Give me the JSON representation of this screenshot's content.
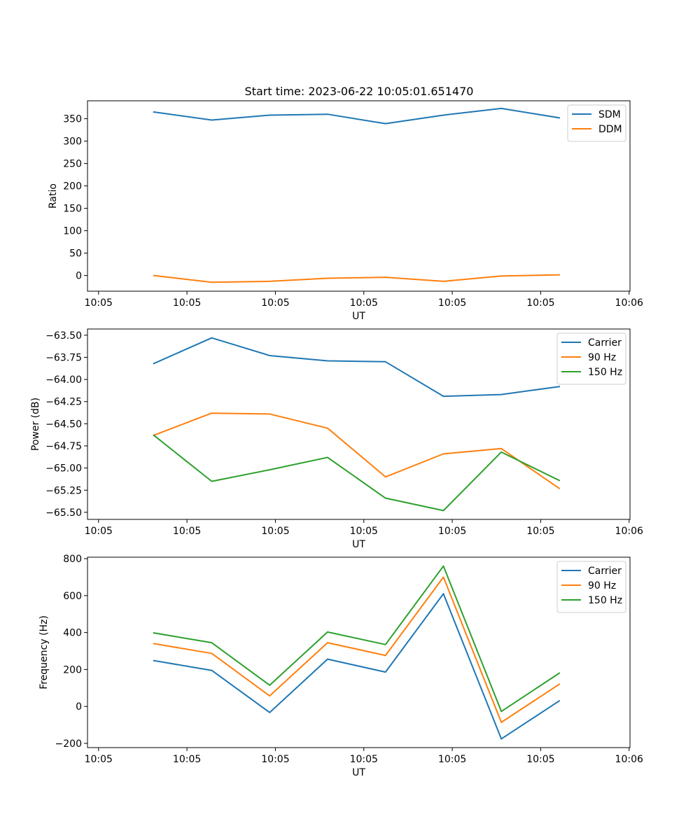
{
  "figure_title": "Start time: 2023-06-22 10:05:01.651470",
  "chart_data": [
    {
      "type": "line",
      "title": "Start time: 2023-06-22 10:05:01.651470",
      "xlabel": "UT",
      "ylabel": "Ratio",
      "x_ticklabels": [
        "10:05",
        "10:05",
        "10:05",
        "10:05",
        "10:05",
        "10:05",
        "10:06"
      ],
      "x_ticks_seconds": [
        5.6,
        6.6,
        7.6,
        8.6,
        9.6,
        10.6,
        11.6
      ],
      "x_seconds": [
        6.225,
        6.88,
        7.535,
        8.19,
        8.845,
        9.5,
        10.155,
        10.81
      ],
      "xlim": [
        5.475,
        11.61
      ],
      "y_ticks": [
        0,
        50,
        100,
        150,
        200,
        250,
        300,
        350
      ],
      "ylim": [
        -35,
        390
      ],
      "legend": "top-right",
      "series": [
        {
          "name": "SDM",
          "color": "#1f77b4",
          "values": [
            365,
            347,
            358,
            360,
            339,
            358,
            373,
            352
          ]
        },
        {
          "name": "DDM",
          "color": "#ff7f0e",
          "values": [
            0,
            -15,
            -13,
            -6,
            -4,
            -13,
            -1,
            1.5
          ]
        }
      ]
    },
    {
      "type": "line",
      "xlabel": "UT",
      "ylabel": "Power (dB)",
      "x_ticklabels": [
        "10:05",
        "10:05",
        "10:05",
        "10:05",
        "10:05",
        "10:05",
        "10:06"
      ],
      "x_ticks_seconds": [
        5.6,
        6.6,
        7.6,
        8.6,
        9.6,
        10.6,
        11.6
      ],
      "x_seconds": [
        6.225,
        6.88,
        7.535,
        8.19,
        8.845,
        9.5,
        10.155,
        10.81
      ],
      "xlim": [
        5.475,
        11.61
      ],
      "y_ticks": [
        -63.5,
        -63.75,
        -64.0,
        -64.25,
        -64.5,
        -64.75,
        -65.0,
        -65.25,
        -65.5
      ],
      "y_ticklabels": [
        "−63.50",
        "−63.75",
        "−64.00",
        "−64.25",
        "−64.50",
        "−64.75",
        "−65.00",
        "−65.25",
        "−65.50"
      ],
      "ylim": [
        -65.58,
        -63.43
      ],
      "legend": "top-right",
      "series": [
        {
          "name": "Carrier",
          "color": "#1f77b4",
          "values": [
            -63.82,
            -63.53,
            -63.73,
            -63.79,
            -63.8,
            -64.19,
            -64.17,
            -64.08
          ]
        },
        {
          "name": "90 Hz",
          "color": "#ff7f0e",
          "values": [
            -64.63,
            -64.38,
            -64.39,
            -64.55,
            -65.1,
            -64.84,
            -64.78,
            -65.23
          ]
        },
        {
          "name": "150 Hz",
          "color": "#2ca02c",
          "values": [
            -64.63,
            -65.15,
            -65.02,
            -64.88,
            -65.34,
            -65.48,
            -64.82,
            -65.14
          ]
        }
      ]
    },
    {
      "type": "line",
      "xlabel": "UT",
      "ylabel": "Frequency (Hz)",
      "x_ticklabels": [
        "10:05",
        "10:05",
        "10:05",
        "10:05",
        "10:05",
        "10:05",
        "10:06"
      ],
      "x_ticks_seconds": [
        5.6,
        6.6,
        7.6,
        8.6,
        9.6,
        10.6,
        11.6
      ],
      "x_seconds": [
        6.225,
        6.88,
        7.535,
        8.19,
        8.845,
        9.5,
        10.155,
        10.81
      ],
      "xlim": [
        5.475,
        11.61
      ],
      "y_ticks": [
        -200,
        0,
        200,
        400,
        600,
        800
      ],
      "y_ticklabels": [
        "−200",
        "0",
        "200",
        "400",
        "600",
        "800"
      ],
      "ylim": [
        -223,
        808
      ],
      "legend": "top-right",
      "series": [
        {
          "name": "Carrier",
          "color": "#1f77b4",
          "values": [
            248,
            195,
            -33,
            256,
            186,
            610,
            -176,
            30
          ]
        },
        {
          "name": "90 Hz",
          "color": "#ff7f0e",
          "values": [
            340,
            287,
            57,
            345,
            276,
            700,
            -86,
            120
          ]
        },
        {
          "name": "150 Hz",
          "color": "#2ca02c",
          "values": [
            398,
            345,
            115,
            403,
            335,
            760,
            -27,
            180
          ]
        }
      ]
    }
  ]
}
